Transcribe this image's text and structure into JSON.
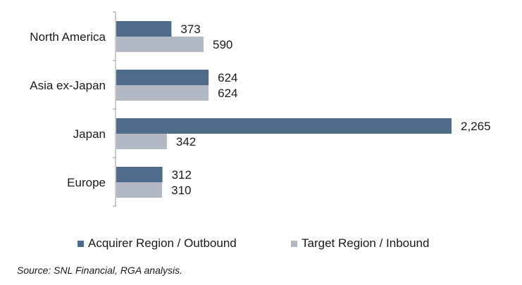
{
  "chart_data": {
    "type": "bar",
    "orientation": "horizontal",
    "categories": [
      "North America",
      "Asia ex-Japan",
      "Japan",
      "Europe"
    ],
    "series": [
      {
        "name": "Acquirer Region / Outbound",
        "values": [
          373,
          624,
          2265,
          312
        ],
        "labels": [
          "373",
          "624",
          "2,265",
          "312"
        ],
        "color": "#4e6b8a"
      },
      {
        "name": "Target Region / Inbound",
        "values": [
          590,
          624,
          342,
          310
        ],
        "labels": [
          "590",
          "624",
          "342",
          "310"
        ],
        "color": "#b3b9c4"
      }
    ],
    "title": "",
    "xlabel": "",
    "ylabel": "",
    "xlim": [
      0,
      2265
    ],
    "grid": false,
    "legend_position": "bottom"
  },
  "source": "Source: SNL Financial, RGA analysis."
}
